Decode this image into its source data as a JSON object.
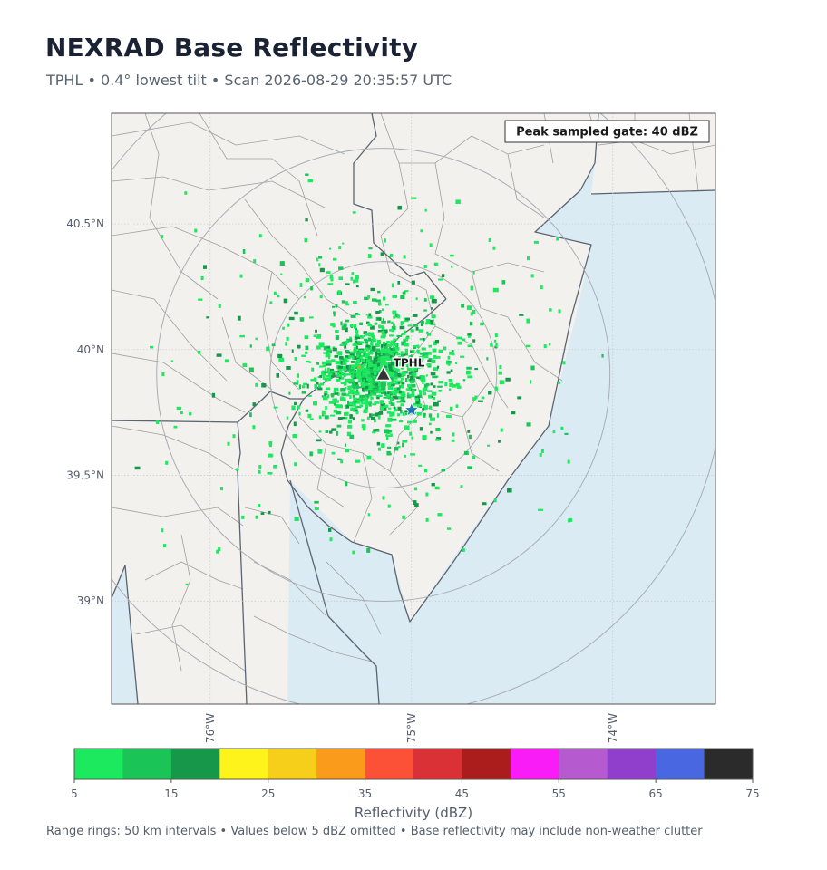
{
  "header": {
    "title": "NEXRAD Base Reflectivity",
    "subtitle": "TPHL  •  0.4° lowest tilt  •  Scan 2026-08-29 20:35:57 UTC"
  },
  "map": {
    "extent": {
      "lon": [
        -76.49,
        -73.49
      ],
      "lat": [
        38.59,
        40.94
      ]
    },
    "lat_ticks": [
      {
        "value": 40.5,
        "label": "40.5°N"
      },
      {
        "value": 40.0,
        "label": "40°N"
      },
      {
        "value": 39.5,
        "label": "39.5°N"
      },
      {
        "value": 39.0,
        "label": "39°N"
      }
    ],
    "lon_ticks": [
      {
        "value": -76.0,
        "label": "76°W"
      },
      {
        "value": -75.0,
        "label": "75°W"
      },
      {
        "value": -74.0,
        "label": "74°W"
      }
    ],
    "radar": {
      "name": "TPHL",
      "lon": -75.14,
      "lat": 39.9
    },
    "star_marker": {
      "lon": -75.0,
      "lat": 39.76
    },
    "range_rings_km": [
      50,
      100,
      150
    ],
    "peak_box": "Peak sampled gate: 40 dBZ",
    "colors": {
      "land": "#f2f1ed",
      "water": "#dbebf4",
      "state_border": "#5a6472",
      "county_line": "#a0a0a0",
      "ring": "#a8aeb4",
      "star": "#1f77b4"
    }
  },
  "colorbar": {
    "label": "Reflectivity (dBZ)",
    "min": 5,
    "max": 75,
    "bins": [
      {
        "from": 5,
        "to": 10,
        "color": "#1de95e"
      },
      {
        "from": 10,
        "to": 15,
        "color": "#1bc457"
      },
      {
        "from": 15,
        "to": 20,
        "color": "#16974a"
      },
      {
        "from": 20,
        "to": 25,
        "color": "#fef31a"
      },
      {
        "from": 25,
        "to": 30,
        "color": "#f5cf1a"
      },
      {
        "from": 30,
        "to": 35,
        "color": "#fa9b1c"
      },
      {
        "from": 35,
        "to": 40,
        "color": "#fc5037"
      },
      {
        "from": 40,
        "to": 45,
        "color": "#d93135"
      },
      {
        "from": 45,
        "to": 50,
        "color": "#ab1c1c"
      },
      {
        "from": 50,
        "to": 55,
        "color": "#fa1cf6"
      },
      {
        "from": 55,
        "to": 60,
        "color": "#b65ad0"
      },
      {
        "from": 60,
        "to": 65,
        "color": "#8f3fcb"
      },
      {
        "from": 65,
        "to": 70,
        "color": "#4a67e2"
      },
      {
        "from": 70,
        "to": 75,
        "color": "#2b2b2b"
      }
    ],
    "tick_labels": [
      "5",
      "15",
      "25",
      "35",
      "45",
      "55",
      "65",
      "75"
    ]
  },
  "footer": "Range rings: 50 km intervals  •  Values below 5 dBZ omitted  •  Base reflectivity may include non-weather clutter"
}
